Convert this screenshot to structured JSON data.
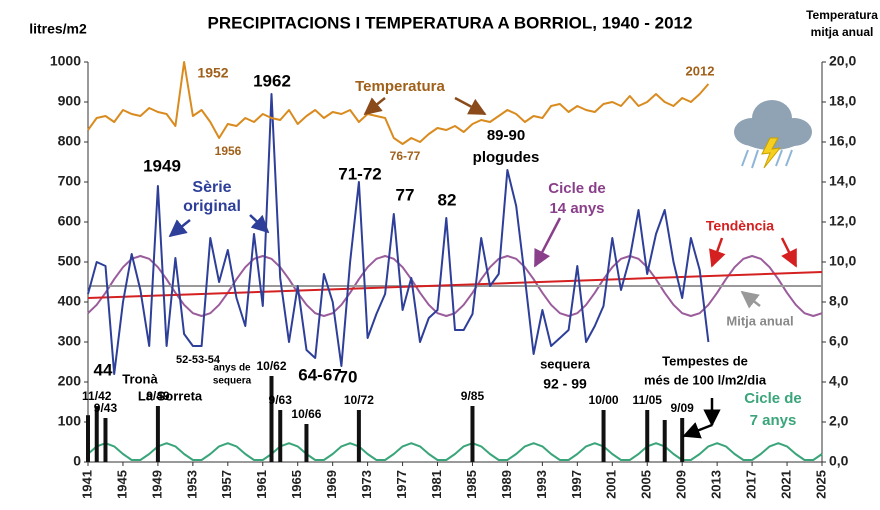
{
  "chart_data": {
    "type": "line",
    "title": "PRECIPITACIONS I TEMPERATURA  A BORRIOL, 1940 - 2012",
    "ylabel": "litres/m2",
    "y2label": [
      "Temperatura",
      "mitja anual"
    ],
    "xlim": [
      1941,
      2025
    ],
    "xticks": [
      1941,
      1945,
      1949,
      1953,
      1957,
      1961,
      1965,
      1969,
      1973,
      1977,
      1981,
      1985,
      1989,
      1993,
      1997,
      2001,
      2005,
      2009,
      2013,
      2017,
      2021,
      2025
    ],
    "ylim": [
      0,
      1000
    ],
    "yticks": [
      0,
      100,
      200,
      300,
      400,
      500,
      600,
      700,
      800,
      900,
      1000
    ],
    "y2lim": [
      0,
      20
    ],
    "y2ticks": [
      {
        "value": 0,
        "label": "0,0"
      },
      {
        "value": 2,
        "label": "2,0"
      },
      {
        "value": 4,
        "label": "4,0"
      },
      {
        "value": 6,
        "label": "6,0"
      },
      {
        "value": 8,
        "label": "8,0"
      },
      {
        "value": 10,
        "label": "10,0"
      },
      {
        "value": 12,
        "label": "12,0"
      },
      {
        "value": 14,
        "label": "14,0"
      },
      {
        "value": 16,
        "label": "16,0"
      },
      {
        "value": 18,
        "label": "18,0"
      },
      {
        "value": 20,
        "label": "20,0"
      }
    ],
    "grid": false,
    "x": [
      1941,
      1942,
      1943,
      1944,
      1945,
      1946,
      1947,
      1948,
      1949,
      1950,
      1951,
      1952,
      1953,
      1954,
      1955,
      1956,
      1957,
      1958,
      1959,
      1960,
      1961,
      1962,
      1963,
      1964,
      1965,
      1966,
      1967,
      1968,
      1969,
      1970,
      1971,
      1972,
      1973,
      1974,
      1975,
      1976,
      1977,
      1978,
      1979,
      1980,
      1981,
      1982,
      1983,
      1984,
      1985,
      1986,
      1987,
      1988,
      1989,
      1990,
      1991,
      1992,
      1993,
      1994,
      1995,
      1996,
      1997,
      1998,
      1999,
      2000,
      2001,
      2002,
      2003,
      2004,
      2005,
      2006,
      2007,
      2008,
      2009,
      2010,
      2011,
      2012,
      2013,
      2014,
      2015,
      2016,
      2017,
      2018,
      2019,
      2020,
      2021,
      2022,
      2023,
      2024,
      2025
    ],
    "series": [
      {
        "type": "line",
        "color": "#9a5c9a",
        "width": 2,
        "values": [
          372,
          393,
          423,
          457,
          487,
          508,
          515,
          508,
          487,
          457,
          423,
          393,
          372,
          365,
          372,
          393,
          423,
          457,
          487,
          508,
          515,
          508,
          487,
          457,
          423,
          393,
          372,
          365,
          372,
          393,
          423,
          457,
          487,
          508,
          515,
          508,
          487,
          457,
          423,
          393,
          372,
          365,
          372,
          393,
          423,
          457,
          487,
          508,
          515,
          508,
          487,
          457,
          423,
          393,
          372,
          365,
          372,
          393,
          423,
          457,
          487,
          508,
          515,
          508,
          487,
          457,
          423,
          393,
          372,
          365,
          372,
          393,
          423,
          457,
          487,
          508,
          515,
          508,
          487,
          457,
          423,
          393,
          372,
          365,
          372
        ]
      },
      {
        "type": "line",
        "color": "#3aa57a",
        "width": 2,
        "values": [
          20,
          39,
          47,
          39,
          20,
          5,
          5,
          20,
          39,
          47,
          39,
          20,
          5,
          5,
          20,
          39,
          47,
          39,
          20,
          5,
          5,
          20,
          39,
          47,
          39,
          20,
          5,
          5,
          20,
          39,
          47,
          39,
          20,
          5,
          5,
          20,
          39,
          47,
          39,
          20,
          5,
          5,
          20,
          39,
          47,
          39,
          20,
          5,
          5,
          20,
          39,
          47,
          39,
          20,
          5,
          5,
          20,
          39,
          47,
          39,
          20,
          5,
          5,
          20,
          39,
          47,
          39,
          20,
          5,
          5,
          20,
          39,
          47,
          39,
          20,
          5,
          5,
          20,
          39,
          47,
          39,
          20,
          5,
          5,
          20
        ]
      },
      {
        "type": "line",
        "color": "#999999",
        "width": 2,
        "x": [
          1941,
          2025
        ],
        "values": [
          440,
          440
        ]
      },
      {
        "type": "line",
        "color": "#d42020",
        "width": 2,
        "x": [
          1941,
          2025
        ],
        "values": [
          410,
          475
        ]
      },
      {
        "type": "line",
        "color": "#2e3f99",
        "width": 2,
        "values": [
          420,
          500,
          490,
          220,
          400,
          520,
          430,
          290,
          690,
          290,
          510,
          320,
          290,
          290,
          560,
          450,
          530,
          410,
          340,
          570,
          390,
          920,
          460,
          300,
          440,
          280,
          260,
          470,
          400,
          240,
          500,
          700,
          310,
          370,
          420,
          620,
          380,
          460,
          300,
          360,
          380,
          610,
          330,
          330,
          370,
          560,
          440,
          470,
          730,
          640,
          460,
          270,
          380,
          290,
          310,
          330,
          490,
          300,
          340,
          390,
          560,
          430,
          510,
          630,
          470,
          570,
          630,
          500,
          410,
          560,
          480,
          300,
          null,
          null,
          null,
          null,
          null,
          null,
          null,
          null,
          null,
          null,
          null,
          null,
          null
        ]
      },
      {
        "type": "line",
        "axis": "y2",
        "color": "#d98b1f",
        "width": 2,
        "values": [
          16.6,
          17.2,
          17.3,
          17.0,
          17.6,
          17.4,
          17.3,
          17.7,
          17.5,
          17.4,
          16.8,
          20.0,
          17.3,
          17.6,
          17.0,
          16.2,
          16.9,
          16.8,
          17.2,
          17.0,
          17.4,
          17.2,
          17.1,
          17.6,
          16.9,
          17.3,
          17.6,
          17.2,
          17.5,
          17.4,
          17.6,
          17.0,
          17.4,
          17.3,
          17.2,
          16.2,
          15.9,
          16.2,
          16.0,
          16.4,
          16.7,
          16.6,
          16.8,
          16.5,
          16.9,
          17.1,
          17.0,
          17.3,
          17.6,
          17.4,
          17.0,
          17.3,
          17.2,
          17.8,
          17.9,
          17.5,
          17.8,
          17.6,
          17.5,
          17.9,
          18.0,
          17.8,
          18.3,
          17.8,
          18.0,
          18.4,
          18.0,
          17.8,
          18.2,
          18.0,
          18.4,
          18.9,
          null,
          null,
          null,
          null,
          null,
          null,
          null,
          null,
          null,
          null,
          null,
          null,
          null
        ]
      },
      {
        "type": "bar",
        "color": "#111111",
        "x": [
          1941,
          1942,
          1943,
          1949,
          1962,
          1963,
          1966,
          1972,
          1985,
          2000,
          2005,
          2007,
          2009
        ],
        "values": [
          117,
          140,
          110,
          140,
          215,
          130,
          95,
          130,
          140,
          130,
          130,
          105,
          110
        ],
        "labels": [
          null,
          "11/42",
          "9/43",
          "9/49",
          "10/62",
          "9/63",
          "10/66",
          "10/72",
          "9/85",
          "10/00",
          "11/05",
          null,
          "9/09"
        ]
      }
    ],
    "annotations": [
      {
        "text": "1952",
        "color": "#a0601a"
      },
      {
        "text": "1956",
        "color": "#a0601a"
      },
      {
        "text": "1962",
        "color": "#000000"
      },
      {
        "text": "Temperatura",
        "color": "#a0601a"
      },
      {
        "text": "2012",
        "color": "#a0601a"
      },
      {
        "text": "1949",
        "color": "#000000"
      },
      {
        "text": "Sèrie",
        "color": "#2e3f99"
      },
      {
        "text": "original",
        "color": "#2e3f99"
      },
      {
        "text": "71-72",
        "color": "#000000"
      },
      {
        "text": "77",
        "color": "#000000"
      },
      {
        "text": "82",
        "color": "#000000"
      },
      {
        "text": "89-90",
        "color": "#000000"
      },
      {
        "text": "plogudes",
        "color": "#000000"
      },
      {
        "text": "76-77",
        "color": "#a0601a"
      },
      {
        "text": "Cicle de",
        "color": "#8a3f8a"
      },
      {
        "text": "14 anys",
        "color": "#8a3f8a"
      },
      {
        "text": "Tendència",
        "color": "#d42020"
      },
      {
        "text": "Mitja anual",
        "color": "#888888"
      },
      {
        "text": "44",
        "color": "#000000"
      },
      {
        "text": "52-53-54",
        "color": "#000000"
      },
      {
        "text": "anys de",
        "color": "#000000"
      },
      {
        "text": "sequera",
        "color": "#000000"
      },
      {
        "text": "Tronà",
        "color": "#000000"
      },
      {
        "text": "La Sorreta",
        "color": "#000000"
      },
      {
        "text": "64-67",
        "color": "#000000"
      },
      {
        "text": "70",
        "color": "#000000"
      },
      {
        "text": "sequera",
        "color": "#000000"
      },
      {
        "text": "92 - 99",
        "color": "#000000"
      },
      {
        "text": "Tempestes de",
        "color": "#000000"
      },
      {
        "text": "més de 100 l/m2/dia",
        "color": "#000000"
      },
      {
        "text": "Cicle de",
        "color": "#3aa57a"
      },
      {
        "text": "7 anys",
        "color": "#3aa57a"
      }
    ]
  }
}
